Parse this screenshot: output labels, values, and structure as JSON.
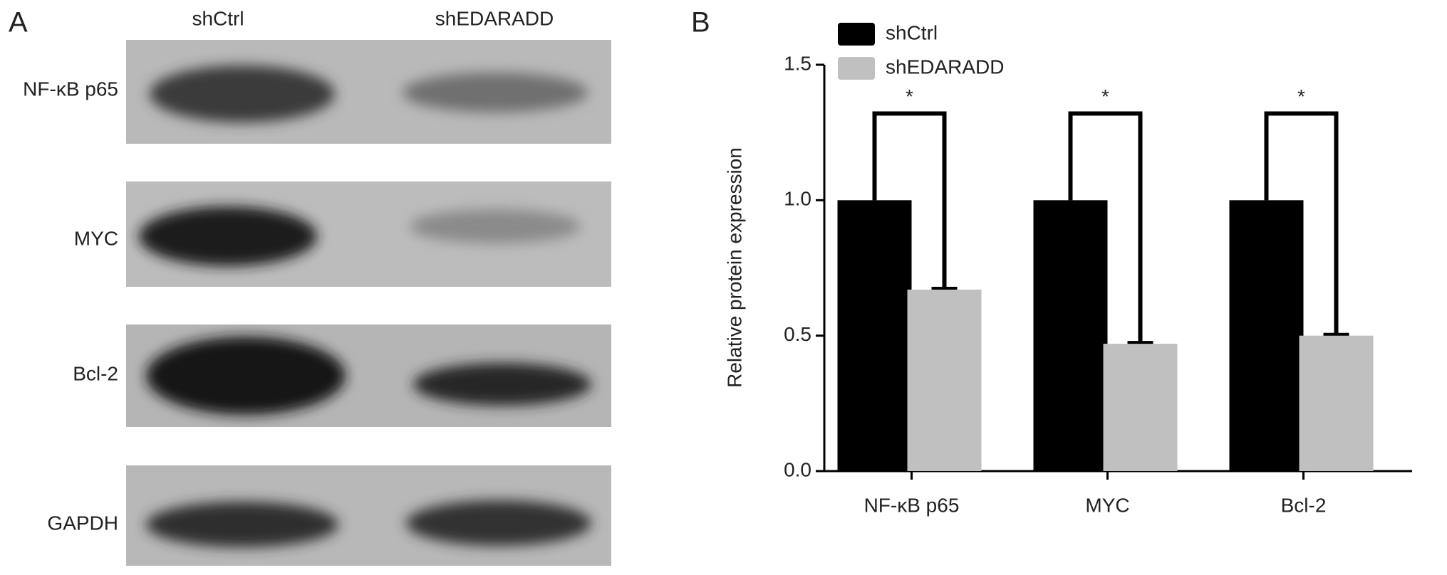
{
  "panel_a": {
    "label": "A",
    "columns": [
      "shCtrl",
      "shEDARADD"
    ],
    "rows": [
      "NF-κB p65",
      "MYC",
      "Bcl-2",
      "GAPDH"
    ]
  },
  "chart_data": {
    "type": "bar",
    "panel_label": "B",
    "y_label": "Relative protein expression",
    "categories": [
      "NF-κB p65",
      "MYC",
      "Bcl-2"
    ],
    "series": [
      {
        "name": "shCtrl",
        "color": "#000000",
        "values": [
          1,
          1,
          1
        ]
      },
      {
        "name": "shEDARADD",
        "color": "#c0c0c0",
        "values": [
          0.67,
          0.47,
          0.5
        ],
        "errors": [
          0.005,
          0.005,
          0.005
        ]
      }
    ],
    "ylim": [
      0,
      1.5
    ],
    "yticks": [
      {
        "value": 0,
        "label": "0.0"
      },
      {
        "value": 0.5,
        "label": "0.5"
      },
      {
        "value": 1,
        "label": "1.0"
      },
      {
        "value": 1.5,
        "label": "1.5"
      }
    ],
    "annotations": [
      "*",
      "*",
      "*"
    ]
  }
}
